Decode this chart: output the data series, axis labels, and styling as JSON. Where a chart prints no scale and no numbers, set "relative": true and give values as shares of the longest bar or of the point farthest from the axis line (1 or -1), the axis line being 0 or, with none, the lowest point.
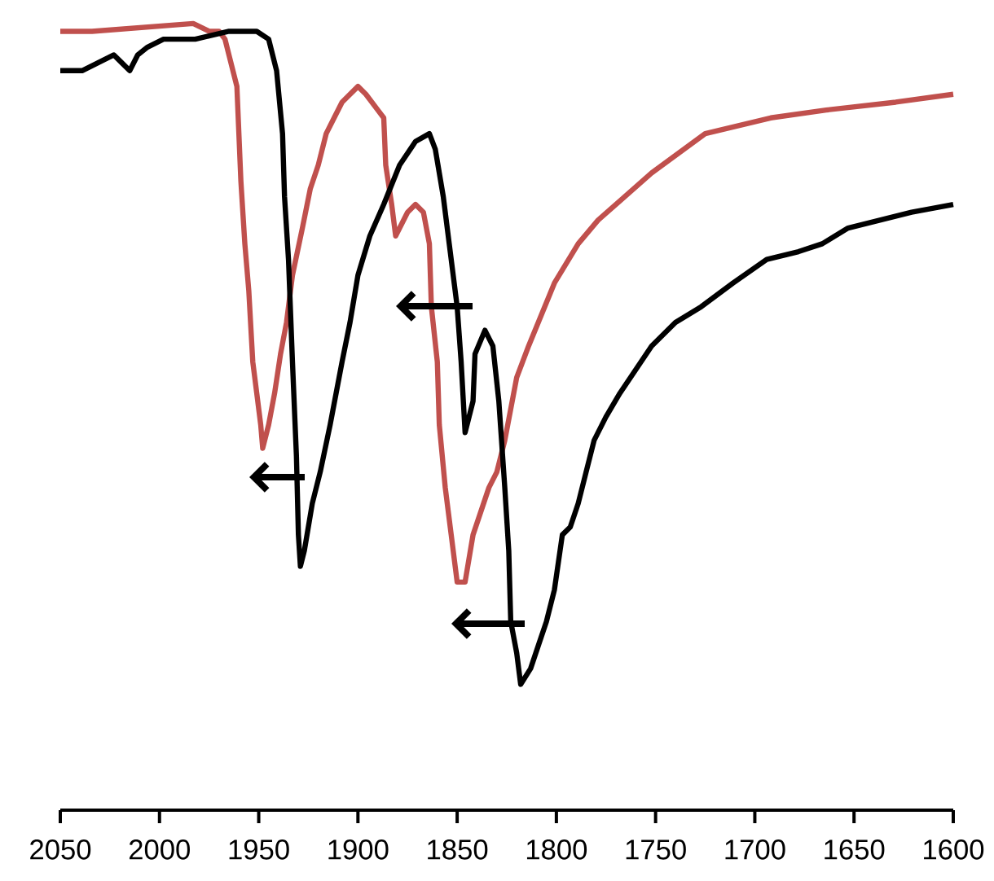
{
  "chart_data": {
    "type": "line",
    "relative": true,
    "xlim": [
      2050,
      1600
    ],
    "xticks": [
      2050,
      2000,
      1950,
      1900,
      1850,
      1800,
      1750,
      1700,
      1650,
      1600
    ],
    "series": [
      {
        "color": "#c0504d",
        "x": [
          2050,
          2037,
          2034,
          1983,
          1975,
          1970,
          1967,
          1965,
          1961,
          1960,
          1959,
          1957,
          1955,
          1953,
          1951,
          1949,
          1948,
          1945,
          1942,
          1939,
          1936,
          1933,
          1928,
          1924,
          1920,
          1916,
          1912,
          1908,
          1904,
          1900,
          1896,
          1890,
          1887,
          1886,
          1883,
          1881,
          1875,
          1871,
          1867,
          1864,
          1863,
          1860,
          1859,
          1856,
          1853,
          1850,
          1846,
          1842,
          1838,
          1834,
          1830,
          1826,
          1820,
          1814,
          1801,
          1789,
          1779,
          1752,
          1725,
          1692,
          1664,
          1629,
          1600
        ],
        "values": [
          0.99,
          0.99,
          0.99,
          1.0,
          0.99,
          0.99,
          0.98,
          0.96,
          0.92,
          0.86,
          0.8,
          0.72,
          0.66,
          0.57,
          0.53,
          0.49,
          0.46,
          0.49,
          0.53,
          0.58,
          0.62,
          0.68,
          0.74,
          0.79,
          0.82,
          0.86,
          0.88,
          0.9,
          0.91,
          0.92,
          0.91,
          0.89,
          0.88,
          0.82,
          0.77,
          0.73,
          0.76,
          0.77,
          0.76,
          0.72,
          0.64,
          0.57,
          0.49,
          0.41,
          0.35,
          0.29,
          0.29,
          0.35,
          0.38,
          0.41,
          0.43,
          0.47,
          0.55,
          0.59,
          0.67,
          0.72,
          0.75,
          0.81,
          0.86,
          0.88,
          0.89,
          0.9,
          0.91
        ]
      },
      {
        "color": "#000000",
        "x": [
          2050,
          2039,
          2031,
          2023,
          2019,
          2015,
          2011,
          2006,
          1998,
          1982,
          1965,
          1957,
          1951,
          1945,
          1941,
          1938,
          1937,
          1935,
          1933,
          1931,
          1930,
          1929,
          1927,
          1923,
          1919,
          1914,
          1908,
          1904,
          1900,
          1894,
          1887,
          1879,
          1871,
          1864,
          1861,
          1857,
          1854,
          1850,
          1848,
          1846,
          1842,
          1841,
          1836,
          1832,
          1829,
          1826,
          1824,
          1823,
          1820,
          1818,
          1813,
          1809,
          1805,
          1801,
          1797,
          1793,
          1789,
          1785,
          1781,
          1775,
          1768,
          1760,
          1752,
          1740,
          1727,
          1711,
          1694,
          1678,
          1666,
          1653,
          1637,
          1621,
          1600
        ],
        "values": [
          0.94,
          0.94,
          0.95,
          0.96,
          0.95,
          0.94,
          0.96,
          0.97,
          0.98,
          0.98,
          0.99,
          0.99,
          0.99,
          0.98,
          0.94,
          0.86,
          0.78,
          0.7,
          0.57,
          0.45,
          0.35,
          0.31,
          0.33,
          0.39,
          0.43,
          0.49,
          0.57,
          0.62,
          0.68,
          0.73,
          0.77,
          0.82,
          0.85,
          0.86,
          0.84,
          0.78,
          0.72,
          0.64,
          0.57,
          0.48,
          0.52,
          0.58,
          0.61,
          0.59,
          0.52,
          0.41,
          0.33,
          0.24,
          0.2,
          0.16,
          0.18,
          0.21,
          0.24,
          0.28,
          0.35,
          0.36,
          0.39,
          0.43,
          0.47,
          0.5,
          0.53,
          0.56,
          0.59,
          0.62,
          0.64,
          0.67,
          0.7,
          0.71,
          0.72,
          0.74,
          0.75,
          0.76,
          0.77
        ]
      }
    ]
  }
}
